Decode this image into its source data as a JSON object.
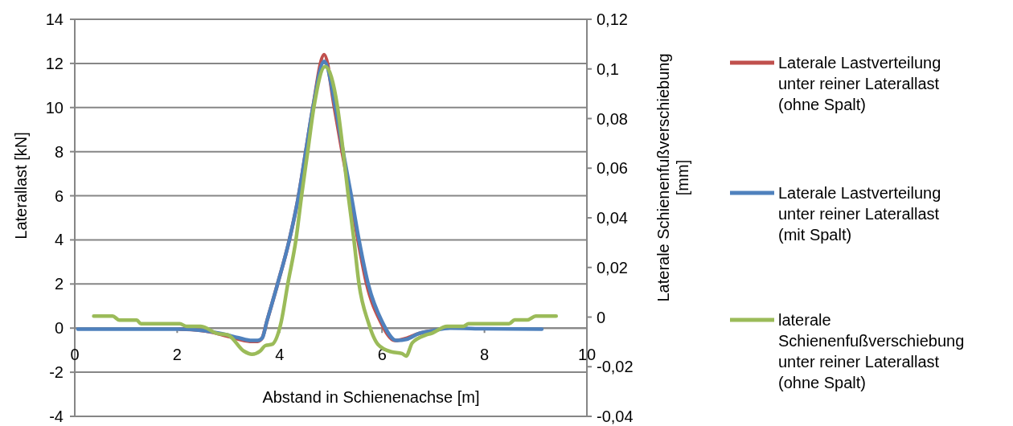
{
  "chart_data": {
    "type": "line",
    "xlabel": "Abstand in Schienenachse [m]",
    "ylabel": "Laterallast [kN]",
    "y2label": "Laterale Schienenfußverschiebung [mm]",
    "xlim": [
      0,
      10
    ],
    "xticks": [
      0,
      2,
      4,
      6,
      8,
      10
    ],
    "ylim": [
      -4,
      14
    ],
    "yticks": [
      -4,
      -2,
      0,
      2,
      4,
      6,
      8,
      10,
      12,
      14
    ],
    "y2lim": [
      -0.04,
      0.12
    ],
    "y2ticks": [
      {
        "value": -0.04,
        "label": "-0,04"
      },
      {
        "value": -0.02,
        "label": "-0,02"
      },
      {
        "value": 0,
        "label": "0"
      },
      {
        "value": 0.02,
        "label": "0,02"
      },
      {
        "value": 0.04,
        "label": "0,04"
      },
      {
        "value": 0.06,
        "label": "0,06"
      },
      {
        "value": 0.08,
        "label": "0,08"
      },
      {
        "value": 0.1,
        "label": "0,1"
      },
      {
        "value": 0.12,
        "label": "0,12"
      }
    ],
    "grid": "y",
    "legend": "right",
    "line_style": "solid",
    "marker": "none",
    "series": [
      {
        "name": "Laterale Lastverteilung unter reiner Laterallast (ohne Spalt)",
        "color": "#c0504d",
        "x": [
          2.05,
          2.46,
          2.88,
          3.2,
          3.46,
          3.57,
          3.66,
          3.75,
          3.96,
          4.19,
          4.37,
          4.51,
          4.65,
          4.87,
          5.07,
          5.22,
          5.38,
          5.53,
          5.7,
          5.97,
          6.25,
          6.49,
          6.71,
          6.97
        ],
        "values": [
          -0.05,
          -0.1,
          -0.3,
          -0.5,
          -0.6,
          -0.6,
          -0.45,
          0.3,
          2,
          4,
          6,
          8,
          10,
          12.4,
          10,
          8,
          6,
          4,
          2,
          0.3,
          -0.56,
          -0.45,
          -0.25,
          -0.13
        ]
      },
      {
        "name": "Laterale Lastverteilung unter reiner Laterallast (mit Spalt)",
        "color": "#4f81bd",
        "x": [
          0.06,
          1,
          2.05,
          2.46,
          2.88,
          3.2,
          3.46,
          3.57,
          3.66,
          3.75,
          3.96,
          4.19,
          4.37,
          4.51,
          4.65,
          4.87,
          5.09,
          5.24,
          5.4,
          5.55,
          5.73,
          6,
          6.28,
          6.49,
          6.71,
          6.97,
          7.33,
          8,
          9.12
        ],
        "values": [
          -0.05,
          -0.05,
          -0.05,
          -0.1,
          -0.25,
          -0.44,
          -0.56,
          -0.56,
          -0.45,
          0.3,
          2,
          4,
          6,
          8,
          10,
          12.1,
          10,
          8,
          6,
          4,
          2,
          0.3,
          -0.56,
          -0.5,
          -0.25,
          -0.13,
          0,
          -0.03,
          -0.05
        ]
      },
      {
        "name": "laterale Schienenfußverschiebung unter reiner Laterallast (ohne Spalt)",
        "color": "#9bbb59",
        "axis": "y2",
        "x": [
          0.37,
          0.74,
          0.87,
          1.21,
          1.29,
          2.05,
          2.18,
          2.46,
          2.78,
          2.99,
          3.3,
          3.46,
          3.62,
          3.72,
          3.85,
          4.03,
          4.16,
          4.32,
          4.43,
          4.55,
          4.67,
          4.89,
          5.13,
          5.24,
          5.34,
          5.45,
          5.55,
          5.73,
          5.92,
          6.18,
          6.39,
          6.47,
          6.59,
          6.86,
          6.96,
          7.27,
          7.59,
          7.69,
          8.48,
          8.59,
          8.84,
          9,
          9.4
        ],
        "values": [
          0.0004,
          0.0004,
          -0.0012,
          -0.0012,
          -0.0027,
          -0.0027,
          -0.0037,
          -0.0037,
          -0.0066,
          -0.0072,
          -0.0137,
          -0.015,
          -0.0137,
          -0.0115,
          -0.011,
          -0.002,
          0.0134,
          0.0313,
          0.0491,
          0.0669,
          0.0847,
          0.101,
          0.0847,
          0.0669,
          0.0491,
          0.0313,
          0.0134,
          -0.002,
          -0.011,
          -0.014,
          -0.0147,
          -0.0157,
          -0.0104,
          -0.0072,
          -0.0066,
          -0.0037,
          -0.0037,
          -0.0027,
          -0.0027,
          -0.0011,
          -0.0011,
          0.0004,
          0.0004
        ]
      }
    ]
  }
}
